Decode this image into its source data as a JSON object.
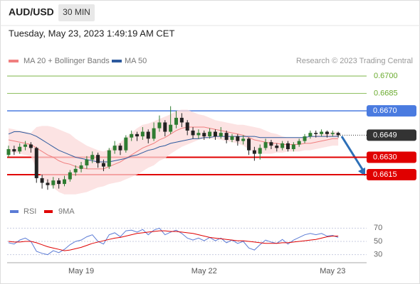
{
  "header": {
    "symbol": "AUD/USD",
    "timeframe": "30 MIN",
    "datetime": "Tuesday, May 23, 2023 1:49:19 AM CET"
  },
  "chart_data": [
    {
      "type": "candlestick",
      "credit": "Research © 2023 Trading Central",
      "up_color": "#2f7d32",
      "down_color": "#222222",
      "ylim": [
        0.6595,
        0.6708
      ],
      "open": [
        0.6632,
        0.6637,
        0.6635,
        0.6639,
        0.6641,
        0.6638,
        0.6612,
        0.6608,
        0.6606,
        0.661,
        0.6607,
        0.6611,
        0.6617,
        0.662,
        0.6623,
        0.6628,
        0.6632,
        0.6625,
        0.6622,
        0.6636,
        0.664,
        0.6636,
        0.6647,
        0.665,
        0.6648,
        0.6652,
        0.6646,
        0.6655,
        0.666,
        0.6652,
        0.6658,
        0.6664,
        0.666,
        0.6653,
        0.6649,
        0.6651,
        0.6648,
        0.6652,
        0.6648,
        0.6651,
        0.6645,
        0.6648,
        0.6644,
        0.6646,
        0.6636,
        0.6633,
        0.6638,
        0.6643,
        0.664,
        0.6638,
        0.6642,
        0.6637,
        0.6641,
        0.6644,
        0.6648,
        0.6651,
        0.665,
        0.6652,
        0.665,
        0.6651
      ],
      "high": [
        0.664,
        0.664,
        0.6642,
        0.6644,
        0.6643,
        0.6639,
        0.6615,
        0.6611,
        0.6613,
        0.6612,
        0.6614,
        0.6619,
        0.6623,
        0.6626,
        0.6631,
        0.6635,
        0.6634,
        0.6628,
        0.6638,
        0.6644,
        0.6642,
        0.6649,
        0.6653,
        0.6652,
        0.6656,
        0.6654,
        0.666,
        0.6666,
        0.6662,
        0.6674,
        0.667,
        0.6668,
        0.6662,
        0.6656,
        0.6654,
        0.6653,
        0.6655,
        0.6654,
        0.6656,
        0.6653,
        0.665,
        0.665,
        0.6649,
        0.6647,
        0.6639,
        0.6641,
        0.6646,
        0.6645,
        0.6642,
        0.6644,
        0.6644,
        0.6643,
        0.6646,
        0.665,
        0.6653,
        0.6653,
        0.6654,
        0.6653,
        0.6653,
        0.6652
      ],
      "low": [
        0.663,
        0.6632,
        0.6633,
        0.6636,
        0.6634,
        0.6608,
        0.6603,
        0.6602,
        0.6603,
        0.6603,
        0.6605,
        0.6609,
        0.6614,
        0.6617,
        0.662,
        0.6625,
        0.6621,
        0.6618,
        0.662,
        0.6633,
        0.6632,
        0.6634,
        0.6644,
        0.6644,
        0.6645,
        0.6642,
        0.6644,
        0.6652,
        0.6648,
        0.665,
        0.6655,
        0.6656,
        0.6649,
        0.6646,
        0.6646,
        0.6645,
        0.6646,
        0.6645,
        0.6646,
        0.6642,
        0.6643,
        0.664,
        0.6641,
        0.6632,
        0.6627,
        0.6628,
        0.6636,
        0.6637,
        0.6635,
        0.6636,
        0.6635,
        0.6635,
        0.6639,
        0.6642,
        0.6646,
        0.6647,
        0.6648,
        0.6647,
        0.6648,
        0.6647
      ],
      "close": [
        0.6637,
        0.6635,
        0.6639,
        0.6641,
        0.6638,
        0.6612,
        0.6608,
        0.6606,
        0.661,
        0.6607,
        0.6611,
        0.6617,
        0.662,
        0.6623,
        0.6628,
        0.6632,
        0.6625,
        0.6622,
        0.6636,
        0.664,
        0.6636,
        0.6647,
        0.665,
        0.6648,
        0.6652,
        0.6646,
        0.6655,
        0.666,
        0.6652,
        0.6658,
        0.6664,
        0.666,
        0.6653,
        0.6649,
        0.6651,
        0.6648,
        0.6652,
        0.6648,
        0.6651,
        0.6645,
        0.6648,
        0.6644,
        0.6646,
        0.6636,
        0.6633,
        0.6638,
        0.6643,
        0.664,
        0.6638,
        0.6642,
        0.6637,
        0.6641,
        0.6644,
        0.6648,
        0.6651,
        0.665,
        0.6652,
        0.665,
        0.6651,
        0.6649
      ],
      "series": [
        {
          "name": "MA 20 + Bollinger Bands",
          "color": "#f07f7f",
          "band_color": "#fbd9d9",
          "values": [
            0.6645,
            0.6644,
            0.6643,
            0.6642,
            0.6641,
            0.6638,
            0.6635,
            0.6632,
            0.663,
            0.6627,
            0.6625,
            0.6624,
            0.6622,
            0.6621,
            0.662,
            0.662,
            0.662,
            0.662,
            0.6622,
            0.6624,
            0.6626,
            0.6629,
            0.6632,
            0.6635,
            0.6638,
            0.664,
            0.6642,
            0.6645,
            0.6647,
            0.665,
            0.6653,
            0.6655,
            0.6656,
            0.6656,
            0.6656,
            0.6656,
            0.6655,
            0.6654,
            0.6653,
            0.6652,
            0.6651,
            0.665,
            0.6649,
            0.6647,
            0.6645,
            0.6644,
            0.6643,
            0.6642,
            0.6642,
            0.6641,
            0.6641,
            0.6641,
            0.6641,
            0.6642,
            0.6642,
            0.6643,
            0.6644,
            0.6645,
            0.6646,
            0.6646
          ],
          "upper": [
            0.6655,
            0.6654,
            0.6653,
            0.6652,
            0.6651,
            0.6656,
            0.6657,
            0.6657,
            0.6656,
            0.6654,
            0.6652,
            0.665,
            0.6646,
            0.6643,
            0.664,
            0.6638,
            0.6636,
            0.6635,
            0.6637,
            0.664,
            0.6643,
            0.6647,
            0.6651,
            0.6655,
            0.6658,
            0.6659,
            0.6661,
            0.6663,
            0.6665,
            0.6667,
            0.667,
            0.6671,
            0.6671,
            0.6669,
            0.6667,
            0.6666,
            0.6664,
            0.6662,
            0.6661,
            0.666,
            0.6659,
            0.6658,
            0.6658,
            0.6657,
            0.6656,
            0.6655,
            0.6653,
            0.6651,
            0.665,
            0.6648,
            0.6647,
            0.6647,
            0.6647,
            0.6648,
            0.6648,
            0.6649,
            0.665,
            0.6651,
            0.6652,
            0.6652
          ],
          "lower": [
            0.6635,
            0.6634,
            0.6633,
            0.6632,
            0.6631,
            0.662,
            0.6613,
            0.6607,
            0.6604,
            0.66,
            0.6598,
            0.6598,
            0.6598,
            0.6599,
            0.66,
            0.6602,
            0.6604,
            0.6605,
            0.6607,
            0.6608,
            0.6609,
            0.6611,
            0.6613,
            0.6615,
            0.6618,
            0.6621,
            0.6623,
            0.6627,
            0.6629,
            0.6633,
            0.6636,
            0.6639,
            0.6641,
            0.6643,
            0.6645,
            0.6646,
            0.6646,
            0.6646,
            0.6645,
            0.6644,
            0.6643,
            0.6642,
            0.664,
            0.6637,
            0.6634,
            0.6633,
            0.6633,
            0.6633,
            0.6634,
            0.6634,
            0.6635,
            0.6635,
            0.6635,
            0.6636,
            0.6636,
            0.6637,
            0.6638,
            0.6639,
            0.664,
            0.664
          ]
        },
        {
          "name": "MA 50",
          "color": "#2d5a9e",
          "values": [
            0.665,
            0.6652,
            0.6652,
            0.6651,
            0.665,
            0.6648,
            0.6645,
            0.6642,
            0.6639,
            0.6636,
            0.6634,
            0.6632,
            0.663,
            0.6629,
            0.6628,
            0.6627,
            0.6626,
            0.6626,
            0.6626,
            0.6627,
            0.6628,
            0.6629,
            0.6631,
            0.6632,
            0.6634,
            0.6636,
            0.6637,
            0.6639,
            0.664,
            0.6642,
            0.6643,
            0.6644,
            0.6645,
            0.6646,
            0.6646,
            0.6647,
            0.6647,
            0.6648,
            0.6648,
            0.6648,
            0.6648,
            0.6648,
            0.6648,
            0.6648,
            0.6648,
            0.6647,
            0.6647,
            0.6647,
            0.6647,
            0.6647,
            0.6647,
            0.6647,
            0.6647,
            0.6647,
            0.6648,
            0.6648,
            0.6648,
            0.6648,
            0.6648,
            0.6648
          ]
        }
      ],
      "levels": [
        {
          "value": 0.67,
          "label": "0.6700",
          "color": "#6aab2e",
          "style": "text"
        },
        {
          "value": 0.6685,
          "color": "#6aab2e",
          "style": "text"
        },
        {
          "value": 0.667,
          "label": "0.6670",
          "color": "#4a7be0",
          "style": "box"
        },
        {
          "value": 0.6649,
          "color": "#333333",
          "style": "current"
        },
        {
          "value": 0.663,
          "label": "0.6630",
          "color": "#e00000",
          "style": "box"
        },
        {
          "value": 0.6615,
          "color": "#e00000",
          "style": "box"
        }
      ]
    },
    {
      "type": "line",
      "categories": [
        null,
        null,
        null,
        null,
        null,
        null,
        null,
        null,
        null,
        null,
        null,
        null,
        null,
        "May 19",
        null,
        null,
        null,
        null,
        null,
        null,
        null,
        null,
        null,
        null,
        null,
        null,
        null,
        null,
        null,
        null,
        null,
        null,
        null,
        null,
        null,
        "May 22",
        null,
        null,
        null,
        null,
        null,
        null,
        null,
        null,
        null,
        null,
        null,
        null,
        null,
        null,
        null,
        null,
        null,
        null,
        null,
        null,
        null,
        null,
        "May 23",
        null
      ],
      "ylim": [
        20,
        80
      ],
      "yticks": [
        30,
        50,
        70
      ],
      "series": [
        {
          "name": "RSI",
          "color": "#5b7bd5",
          "values": [
            48,
            46,
            52,
            55,
            50,
            35,
            32,
            30,
            36,
            33,
            38,
            45,
            50,
            52,
            57,
            60,
            50,
            46,
            60,
            63,
            57,
            66,
            67,
            64,
            68,
            60,
            67,
            70,
            60,
            64,
            67,
            62,
            55,
            52,
            55,
            51,
            56,
            51,
            55,
            48,
            52,
            47,
            50,
            40,
            37,
            45,
            52,
            49,
            47,
            53,
            46,
            52,
            56,
            60,
            62,
            60,
            62,
            58,
            59,
            56
          ]
        },
        {
          "name": "9MA",
          "color": "#e00000",
          "values": [
            50,
            49,
            49,
            50,
            50,
            48,
            45,
            42,
            40,
            38,
            36,
            37,
            39,
            41,
            44,
            47,
            49,
            51,
            53,
            55,
            56,
            58,
            60,
            62,
            63,
            64,
            65,
            66,
            66,
            65,
            65,
            64,
            63,
            62,
            60,
            58,
            56,
            55,
            54,
            53,
            52,
            51,
            51,
            50,
            49,
            48,
            47,
            47,
            47,
            48,
            48,
            49,
            50,
            51,
            52,
            53,
            55,
            57,
            58,
            58
          ]
        }
      ]
    }
  ]
}
